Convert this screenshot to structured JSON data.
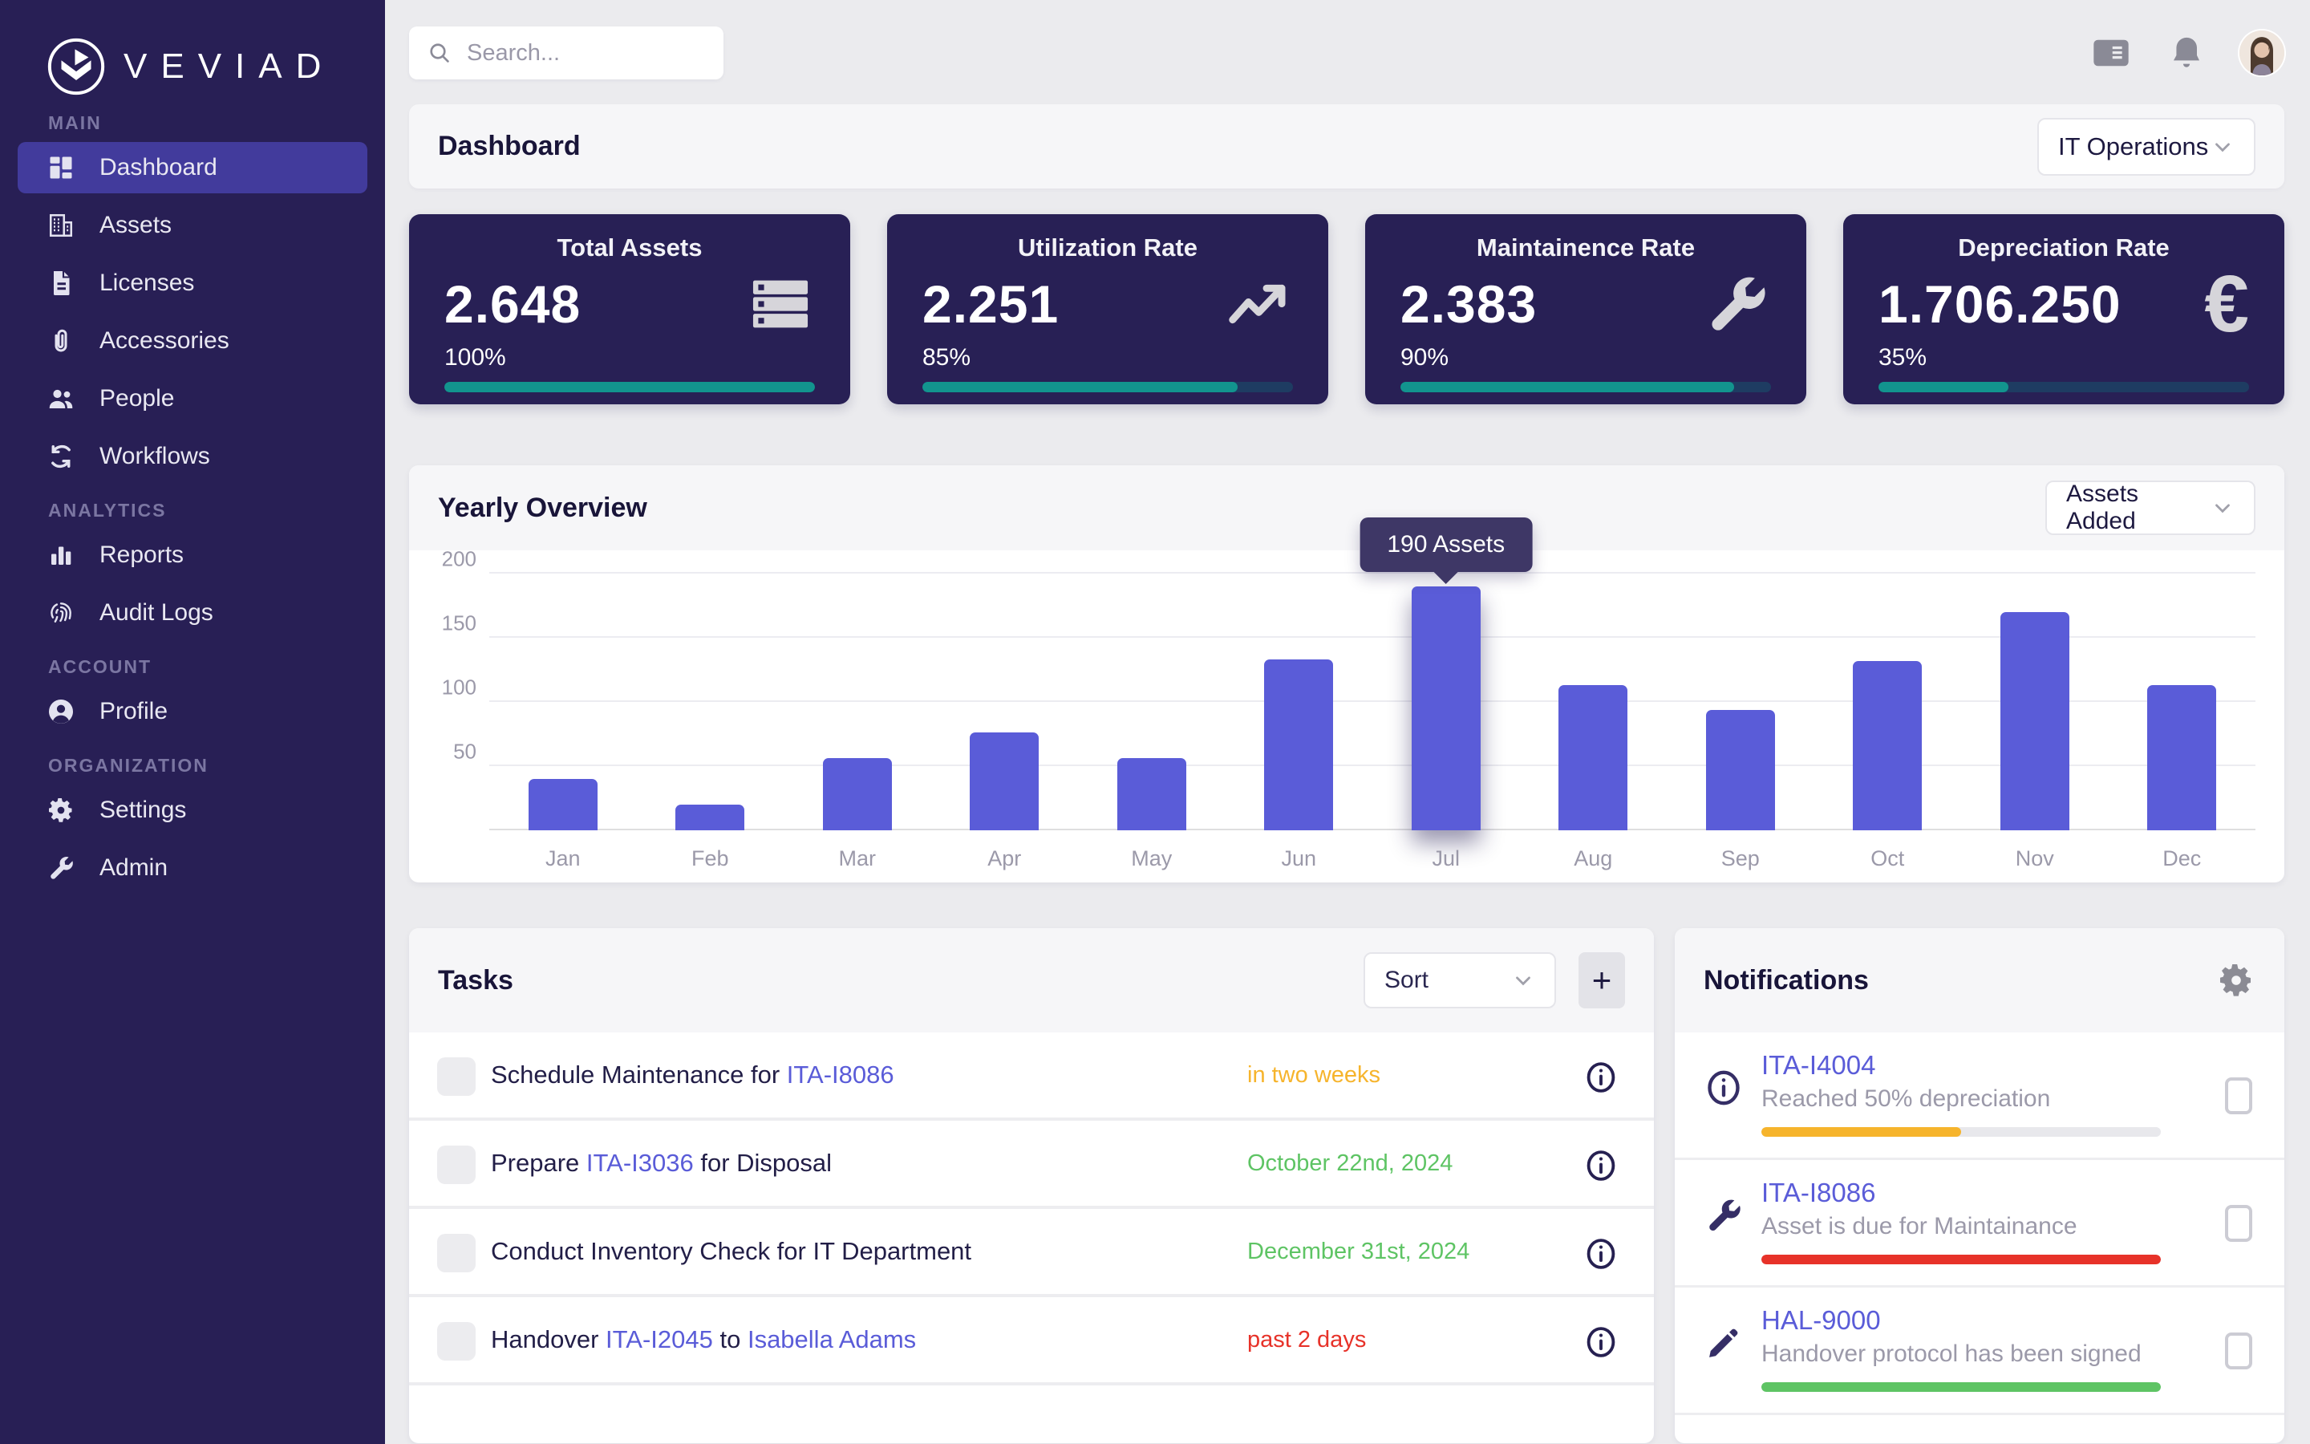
{
  "brand": {
    "name": "VEVIAD"
  },
  "topbar": {
    "search_placeholder": "Search...",
    "icon_names": [
      "search-icon",
      "news-card-icon",
      "bell-icon",
      "avatar"
    ]
  },
  "page_header": {
    "title": "Dashboard",
    "org_selector_value": "IT Operations"
  },
  "sidebar": {
    "sections": [
      {
        "label": "MAIN",
        "items": [
          {
            "label": "Dashboard",
            "icon": "dashboard",
            "active": true
          },
          {
            "label": "Assets",
            "icon": "building",
            "active": false
          },
          {
            "label": "Licenses",
            "icon": "file",
            "active": false
          },
          {
            "label": "Accessories",
            "icon": "paperclip",
            "active": false
          },
          {
            "label": "People",
            "icon": "people",
            "active": false
          },
          {
            "label": "Workflows",
            "icon": "sync",
            "active": false
          }
        ]
      },
      {
        "label": "ANALYTICS",
        "items": [
          {
            "label": "Reports",
            "icon": "bar-chart",
            "active": false
          },
          {
            "label": "Audit Logs",
            "icon": "fingerprint",
            "active": false
          }
        ]
      },
      {
        "label": "ACCOUNT",
        "items": [
          {
            "label": "Profile",
            "icon": "person-circle",
            "active": false
          }
        ]
      },
      {
        "label": "ORGANIZATION",
        "items": [
          {
            "label": "Settings",
            "icon": "gear",
            "active": false
          },
          {
            "label": "Admin",
            "icon": "wrench",
            "active": false
          }
        ]
      }
    ]
  },
  "stat_cards": [
    {
      "title": "Total Assets",
      "value": "2.648",
      "percent": "100%",
      "pct": 100,
      "icon": "server"
    },
    {
      "title": "Utilization Rate",
      "value": "2.251",
      "percent": "85%",
      "pct": 85,
      "icon": "trending-up"
    },
    {
      "title": "Maintainence Rate",
      "value": "2.383",
      "percent": "90%",
      "pct": 90,
      "icon": "wrench"
    },
    {
      "title": "Depreciation Rate",
      "value": "1.706.250",
      "percent": "35%",
      "pct": 35,
      "icon": "euro"
    }
  ],
  "chart_data": {
    "type": "bar",
    "title": "Yearly Overview",
    "selector_value": "Assets Added",
    "categories": [
      "Jan",
      "Feb",
      "Mar",
      "Apr",
      "May",
      "Jun",
      "Jul",
      "Aug",
      "Sep",
      "Oct",
      "Nov",
      "Dec"
    ],
    "values": [
      40,
      20,
      56,
      76,
      56,
      133,
      190,
      113,
      94,
      132,
      170,
      113
    ],
    "yticks": [
      50,
      100,
      150,
      200
    ],
    "ylim": [
      0,
      218
    ],
    "grid": true,
    "legend": false,
    "xlabel": "",
    "ylabel": "",
    "bar_color": "#5a5cd8",
    "highlight": {
      "category": "Jul",
      "tooltip_label": "190 Assets"
    }
  },
  "tasks": {
    "title": "Tasks",
    "sort_label": "Sort",
    "add_button": "+",
    "items": [
      {
        "segments": [
          {
            "text": "Schedule Maintenance for ",
            "link": false
          },
          {
            "text": "ITA-I8086",
            "link": true
          }
        ],
        "due": "in two weeks",
        "due_color": "#f6b42c"
      },
      {
        "segments": [
          {
            "text": "Prepare ",
            "link": false
          },
          {
            "text": "ITA-I3036",
            "link": true
          },
          {
            "text": " for Disposal",
            "link": false
          }
        ],
        "due": "October 22nd, 2024",
        "due_color": "#5ec464"
      },
      {
        "segments": [
          {
            "text": "Conduct Inventory Check for IT Department",
            "link": false
          }
        ],
        "due": "December 31st, 2024",
        "due_color": "#5ec464"
      },
      {
        "segments": [
          {
            "text": "Handover ",
            "link": false
          },
          {
            "text": "ITA-I2045",
            "link": true
          },
          {
            "text": " to ",
            "link": false
          },
          {
            "text": "Isabella Adams",
            "link": true
          }
        ],
        "due": "past 2 days",
        "due_color": "#e73229"
      }
    ]
  },
  "notifications": {
    "title": "Notifications",
    "items": [
      {
        "icon": "info",
        "title": "ITA-I4004",
        "desc": "Reached 50% depreciation",
        "bar_color": "#f6b42c",
        "bar_pct": 50
      },
      {
        "icon": "wrench",
        "title": "ITA-I8086",
        "desc": "Asset is due for Maintainance",
        "bar_color": "#e73229",
        "bar_pct": 100
      },
      {
        "icon": "pencil",
        "title": "HAL-9000",
        "desc": "Handover protocol has been signed",
        "bar_color": "#5ec464",
        "bar_pct": 100
      }
    ]
  },
  "colors": {
    "sidebar_bg": "#281f55",
    "sidebar_active": "#423b9c",
    "stat_card_bg": "#282055",
    "accent_indigo": "#5a5cd8",
    "teal": "#12948e",
    "teal_track": "#1e3c62",
    "amber": "#f6b42c",
    "green": "#5ec464",
    "red": "#e73229",
    "tooltip_bg": "#3e3766",
    "page_bg": "#ebebee",
    "head_strip": "#f6f6f8"
  }
}
